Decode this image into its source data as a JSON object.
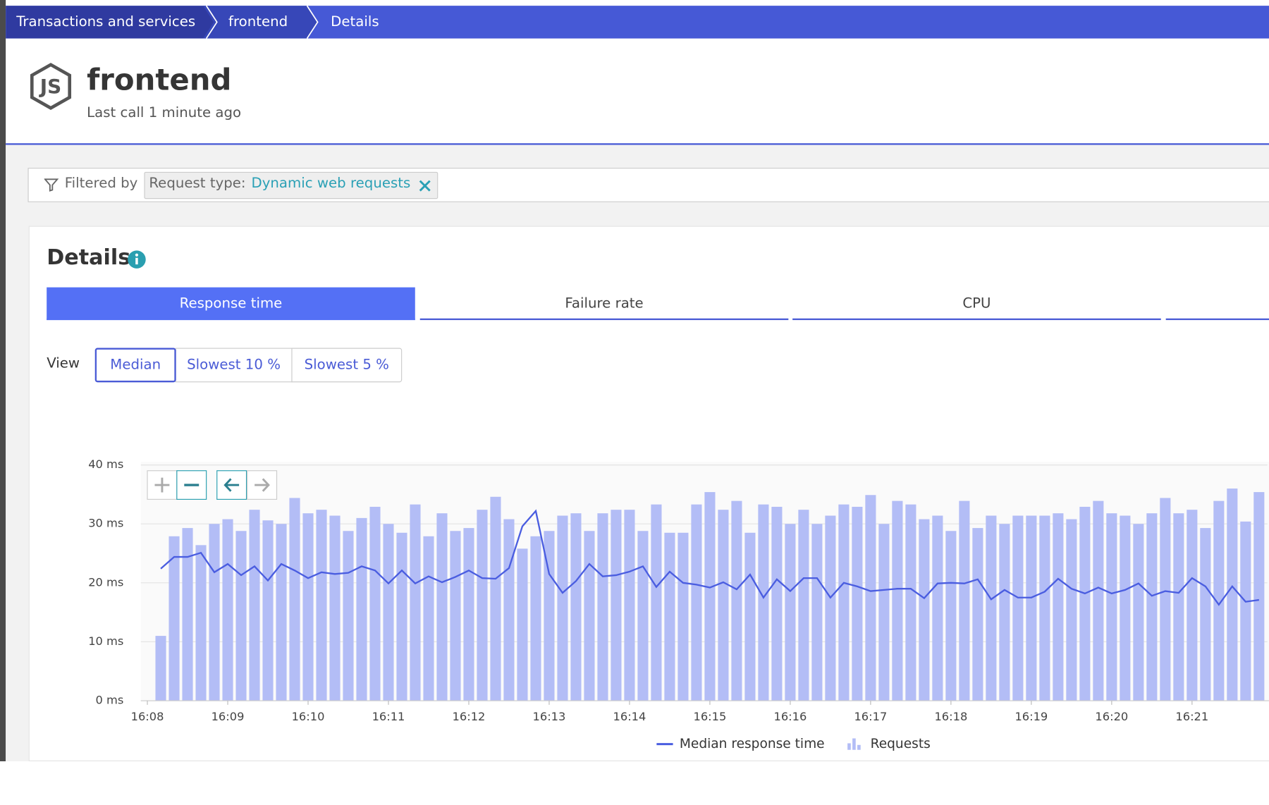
{
  "breadcrumbs": [
    "Transactions and services",
    "frontend",
    "Details"
  ],
  "header": {
    "title": "frontend",
    "subtitle": "Last call 1 minute ago"
  },
  "filter": {
    "label": "Filtered by",
    "tag": {
      "key": "Request type:",
      "value": "Dynamic web requests"
    }
  },
  "details": {
    "title": "Details"
  },
  "tabs": [
    "Response time",
    "Failure rate",
    "CPU"
  ],
  "view": {
    "label": "View",
    "options": [
      "Median",
      "Slowest 10 %",
      "Slowest 5 %"
    ]
  },
  "chart_data": {
    "type": "bar",
    "categories": [
      "16:08",
      null,
      null,
      null,
      null,
      null,
      "16:09",
      null,
      null,
      null,
      null,
      null,
      "16:10",
      null,
      null,
      null,
      null,
      null,
      "16:11",
      null,
      null,
      null,
      null,
      null,
      "16:12",
      null,
      null,
      null,
      null,
      null,
      "16:13",
      null,
      null,
      null,
      null,
      null,
      "16:14",
      null,
      null,
      null,
      null,
      null,
      "16:15",
      null,
      null,
      null,
      null,
      null,
      "16:16",
      null,
      null,
      null,
      null,
      null,
      "16:17",
      null,
      null,
      null,
      null,
      null,
      "16:18",
      null,
      null,
      null,
      null,
      null,
      "16:19",
      null,
      null,
      null,
      null,
      null,
      "16:20",
      null,
      null,
      null,
      null,
      null,
      "16:21",
      null,
      null,
      null,
      null,
      null
    ],
    "series": [
      {
        "name": "Requests",
        "type": "bar",
        "color": "#b3bdf6",
        "values": [
          null,
          11.0,
          27.9,
          29.3,
          26.4,
          30.0,
          30.8,
          28.8,
          32.4,
          30.6,
          30.0,
          34.4,
          31.8,
          32.4,
          31.4,
          28.8,
          31.0,
          32.9,
          30.0,
          28.5,
          33.3,
          27.9,
          31.8,
          28.8,
          29.3,
          32.4,
          34.6,
          30.8,
          25.8,
          27.9,
          28.8,
          31.4,
          31.8,
          28.8,
          31.8,
          32.4,
          32.4,
          28.8,
          33.3,
          28.5,
          28.5,
          33.3,
          35.4,
          32.4,
          33.9,
          28.5,
          33.3,
          32.9,
          30.0,
          32.4,
          30.0,
          31.4,
          33.3,
          32.9,
          34.9,
          30.0,
          33.9,
          33.3,
          30.8,
          31.4,
          28.8,
          33.9,
          29.3,
          31.4,
          30.0,
          31.4,
          31.4,
          31.4,
          31.8,
          30.8,
          32.9,
          33.9,
          31.8,
          31.4,
          30.0,
          31.8,
          34.4,
          31.8,
          32.4,
          29.3,
          33.9,
          36.0,
          30.4,
          35.4
        ]
      },
      {
        "name": "Median response time",
        "type": "line",
        "color": "#4a5de0",
        "values": [
          null,
          22.4,
          24.4,
          24.4,
          25.1,
          21.8,
          23.2,
          21.3,
          22.8,
          20.4,
          23.2,
          22.1,
          20.8,
          21.8,
          21.5,
          21.7,
          22.8,
          22.1,
          19.9,
          22.1,
          19.9,
          21.1,
          20.1,
          21.0,
          22.1,
          20.8,
          20.7,
          22.5,
          29.6,
          32.2,
          21.5,
          18.3,
          20.3,
          23.2,
          21.1,
          21.3,
          21.9,
          22.8,
          19.3,
          21.9,
          20.0,
          19.7,
          19.2,
          20.1,
          18.9,
          21.4,
          17.5,
          20.6,
          18.6,
          20.8,
          20.8,
          17.5,
          20.0,
          19.4,
          18.6,
          18.8,
          19.0,
          19.0,
          17.4,
          19.9,
          20.0,
          19.9,
          20.6,
          17.2,
          18.8,
          17.5,
          17.5,
          18.5,
          20.7,
          19.0,
          18.2,
          19.2,
          18.2,
          18.8,
          19.9,
          17.8,
          18.6,
          18.3,
          20.8,
          19.4,
          16.3,
          19.4,
          16.8,
          17.1
        ]
      }
    ],
    "ylim": [
      0,
      40
    ],
    "yticks": [
      {
        "value": 0,
        "label": "0 ms"
      },
      {
        "value": 10,
        "label": "10 ms"
      },
      {
        "value": 20,
        "label": "20 ms"
      },
      {
        "value": 30,
        "label": "30 ms"
      },
      {
        "value": 40,
        "label": "40 ms"
      }
    ],
    "grid": true,
    "legend": "bottom"
  }
}
